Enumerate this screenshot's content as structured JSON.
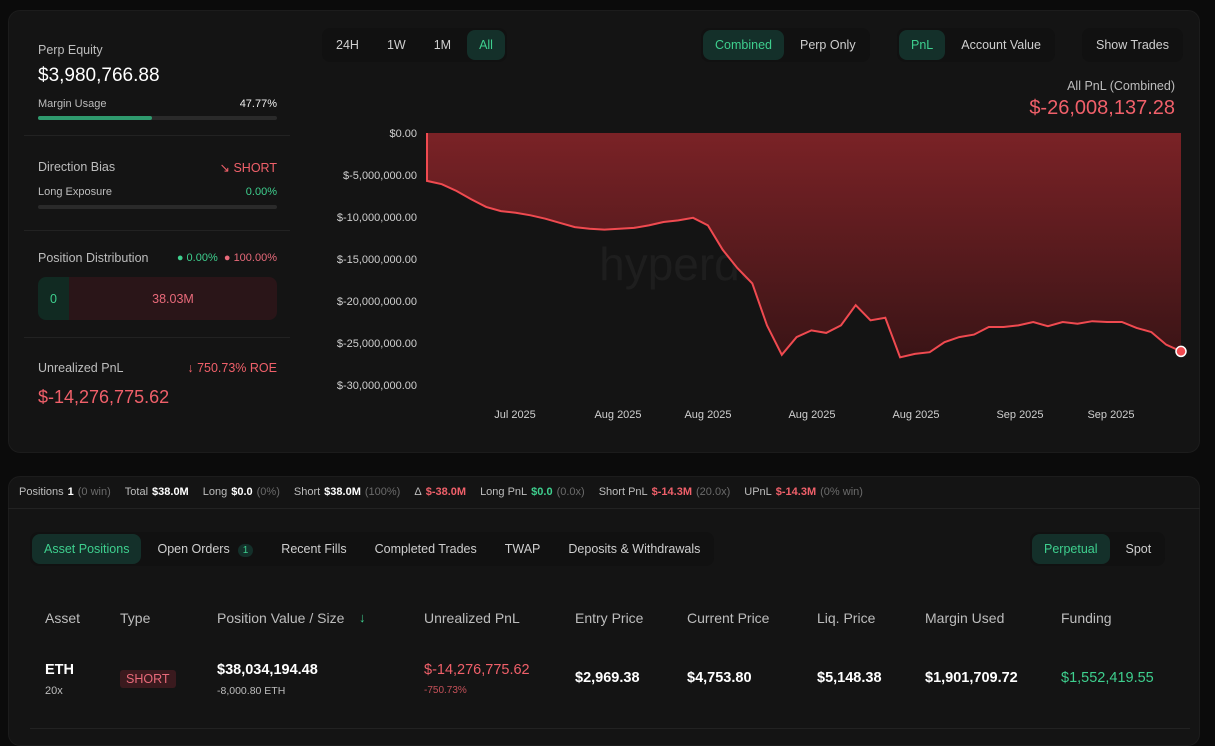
{
  "summary": {
    "perp_equity_label": "Perp Equity",
    "perp_equity": "$3,980,766.88",
    "margin_usage_label": "Margin Usage",
    "margin_usage": "47.77%",
    "margin_usage_pct": 47.77,
    "direction_bias_label": "Direction Bias",
    "direction_bias": "SHORT",
    "long_exposure_label": "Long Exposure",
    "long_exposure": "0.00%",
    "long_exposure_pct": 0,
    "position_distribution_label": "Position Distribution",
    "dist_long_pct": "0.00%",
    "dist_short_pct": "100.00%",
    "dist_long_value": "0",
    "dist_short_value": "38.03M",
    "unrealized_pnl_label": "Unrealized PnL",
    "roe": "750.73% ROE",
    "unrealized_pnl": "$-14,276,775.62"
  },
  "chart_controls": {
    "ranges": [
      "24H",
      "1W",
      "1M",
      "All"
    ],
    "active_range": "All",
    "modes": [
      "Combined",
      "Perp Only"
    ],
    "active_mode": "Combined",
    "metrics": [
      "PnL",
      "Account Value"
    ],
    "active_metric": "PnL",
    "show_trades": "Show Trades",
    "summary_label": "All PnL (Combined)",
    "summary_value": "$-26,008,137.28"
  },
  "watermark": "hyperdash.info",
  "chart_data": {
    "type": "area",
    "ylim": [
      -30000000,
      0
    ],
    "y_ticks": [
      0,
      -5000000,
      -10000000,
      -15000000,
      -20000000,
      -25000000,
      -30000000
    ],
    "y_tick_labels": [
      "$0.00",
      "$-5,000,000.00",
      "$-10,000,000.00",
      "$-15,000,000.00",
      "$-20,000,000.00",
      "$-25,000,000.00",
      "$-30,000,000.00"
    ],
    "x_tick_labels": [
      "Jul 2025",
      "Aug 2025",
      "Aug 2025",
      "Aug 2025",
      "Aug 2025",
      "Sep 2025",
      "Sep 2025"
    ],
    "grid": false,
    "line_color": "#f04a50",
    "values_millions": [
      0,
      -5.7,
      -6.1,
      -6.9,
      -7.9,
      -8.8,
      -9.3,
      -9.5,
      -9.8,
      -10.2,
      -10.7,
      -11.2,
      -11.4,
      -11.5,
      -11.4,
      -11.3,
      -11.0,
      -10.6,
      -10.4,
      -10.1,
      -11.0,
      -13.9,
      -16.1,
      -17.9,
      -22.9,
      -26.4,
      -24.3,
      -23.5,
      -23.8,
      -22.9,
      -20.5,
      -22.3,
      -22.0,
      -26.7,
      -26.3,
      -26.1,
      -24.9,
      -24.3,
      -24.0,
      -23.1,
      -23.1,
      -22.9,
      -22.5,
      -23.0,
      -22.5,
      -22.7,
      -22.4,
      -22.5,
      -22.5,
      -23.2,
      -23.7,
      -25.2,
      -26.0
    ]
  },
  "stats": [
    {
      "label": "Positions",
      "value": "1",
      "note": "(0 win)",
      "color": "white"
    },
    {
      "label": "Total",
      "value": "$38.0M",
      "note": "",
      "color": "white"
    },
    {
      "label": "Long",
      "value": "$0.0",
      "note": "(0%)",
      "color": "white"
    },
    {
      "label": "Short",
      "value": "$38.0M",
      "note": "(100%)",
      "color": "white"
    },
    {
      "label": "Δ",
      "value": "$-38.0M",
      "note": "",
      "color": "red"
    },
    {
      "label": "Long PnL",
      "value": "$0.0",
      "note": "(0.0x)",
      "color": "green"
    },
    {
      "label": "Short PnL",
      "value": "$-14.3M",
      "note": "(20.0x)",
      "color": "red"
    },
    {
      "label": "UPnL",
      "value": "$-14.3M",
      "note": "(0% win)",
      "color": "red"
    }
  ],
  "tabs": [
    {
      "label": "Asset Positions",
      "active": true
    },
    {
      "label": "Open Orders",
      "badge": "1"
    },
    {
      "label": "Recent Fills"
    },
    {
      "label": "Completed Trades"
    },
    {
      "label": "TWAP"
    },
    {
      "label": "Deposits & Withdrawals"
    }
  ],
  "market_tabs": [
    "Perpetual",
    "Spot"
  ],
  "active_market": "Perpetual",
  "table": {
    "headers": [
      "Asset",
      "Type",
      "Position Value / Size",
      "Unrealized PnL",
      "Entry Price",
      "Current Price",
      "Liq. Price",
      "Margin Used",
      "Funding"
    ],
    "rows": [
      {
        "asset": "ETH",
        "leverage": "20x",
        "type": "SHORT",
        "position_value": "$38,034,194.48",
        "size": "-8,000.80 ETH",
        "upnl": "$-14,276,775.62",
        "upnl_pct": "-750.73%",
        "entry": "$2,969.38",
        "current": "$4,753.80",
        "liq": "$5,148.38",
        "margin": "$1,901,709.72",
        "funding": "$1,552,419.55"
      }
    ]
  },
  "colors": {
    "green": "#3ecf8e",
    "red": "#f0606a",
    "bg": "#141414"
  }
}
